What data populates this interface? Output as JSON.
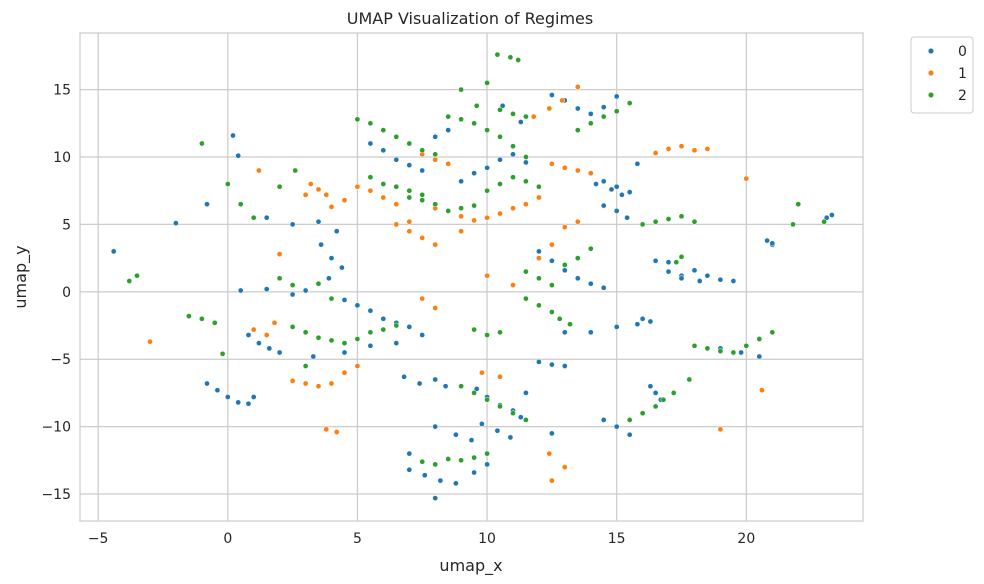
{
  "chart_data": {
    "type": "scatter",
    "title": "UMAP Visualization of Regimes",
    "xlabel": "umap_x",
    "ylabel": "umap_y",
    "xlim": [
      -5.7,
      24.5
    ],
    "ylim": [
      -17.0,
      19.2
    ],
    "xticks": [
      -5,
      0,
      5,
      10,
      15,
      20
    ],
    "yticks": [
      -15,
      -10,
      -5,
      0,
      5,
      10,
      15
    ],
    "xtick_labels": [
      "−5",
      "0",
      "5",
      "10",
      "15",
      "20"
    ],
    "ytick_labels": [
      "−15",
      "−10",
      "−5",
      "0",
      "5",
      "10",
      "15"
    ],
    "grid": true,
    "legend_position": "outside-top-right",
    "series": [
      {
        "name": "0",
        "color": "#1f77b4",
        "x": [
          3.6,
          4.0,
          4.4,
          3.9,
          4.2,
          5.5,
          6.0,
          6.5,
          7.0,
          7.5,
          8.0,
          8.5,
          9.0,
          9.5,
          10.0,
          10.5,
          11.0,
          11.5,
          12.0,
          12.5,
          13.0,
          13.5,
          14.0,
          14.5,
          10.6,
          11.0,
          11.3,
          12.5,
          13.0,
          13.5,
          14.0,
          14.5,
          15.0,
          14.2,
          14.8,
          15.2,
          14.5,
          15.0,
          15.4,
          15.8,
          17.0,
          17.5,
          18.0,
          18.5,
          19.0,
          19.5,
          16.5,
          17.0,
          17.5,
          18.2,
          0.5,
          1.5,
          2.5,
          3.0,
          4.5,
          5.0,
          5.5,
          6.0,
          6.5,
          7.0,
          6.8,
          7.4,
          8.0,
          8.4,
          9.6,
          10.0,
          10.5,
          11.0,
          11.3,
          9.8,
          10.4,
          10.9,
          8.0,
          8.8,
          9.4,
          7.0,
          7.6,
          8.2,
          8.8,
          9.5,
          10.0,
          13.0,
          14.0,
          15.0,
          15.8,
          16.0,
          16.3,
          14.5,
          15.0,
          15.5,
          16.3,
          16.5,
          16.7,
          12.0,
          12.5,
          13.0,
          19.0,
          19.8,
          20.5,
          -0.8,
          -0.4,
          0.0,
          0.4,
          0.8,
          1.0,
          0.8,
          1.2,
          1.6,
          2.0,
          3.3,
          4.5,
          5.5,
          6.5,
          7.5,
          14.5,
          15.0,
          15.5,
          20.8,
          21.0,
          1.5,
          2.5,
          3.5,
          -4.4,
          -2.0,
          -0.8,
          0.2,
          0.4,
          21.0,
          23.1,
          23.3,
          8.0,
          7.0,
          11.5,
          12.5
        ],
        "y": [
          3.5,
          2.5,
          1.8,
          1.0,
          4.5,
          11.0,
          10.5,
          9.8,
          9.4,
          9.0,
          11.5,
          12.0,
          8.2,
          8.8,
          9.2,
          9.8,
          10.2,
          9.6,
          3.0,
          2.3,
          1.6,
          1.0,
          0.6,
          0.3,
          13.8,
          13.2,
          12.6,
          14.6,
          14.2,
          13.6,
          13.2,
          13.7,
          14.5,
          8.0,
          7.6,
          7.2,
          6.4,
          6.0,
          5.5,
          9.5,
          1.5,
          1.2,
          1.6,
          1.2,
          0.9,
          0.8,
          2.3,
          2.2,
          1.0,
          0.8,
          0.1,
          0.2,
          -0.2,
          0.1,
          -0.6,
          -1.0,
          -1.4,
          -2.0,
          -2.3,
          -2.6,
          -6.3,
          -6.8,
          -6.5,
          -7.0,
          -7.2,
          -7.8,
          -8.4,
          -8.8,
          -9.3,
          -9.8,
          -10.3,
          -10.8,
          -10.0,
          -10.6,
          -11.0,
          -13.2,
          -13.6,
          -14.0,
          -14.2,
          -13.4,
          -12.8,
          -3.0,
          -3.0,
          -2.6,
          -2.4,
          -2.0,
          -2.2,
          -9.5,
          -10.0,
          -10.6,
          -7.0,
          -7.5,
          -8.0,
          -5.2,
          -5.4,
          -5.5,
          -4.2,
          -4.5,
          -4.8,
          -6.8,
          -7.3,
          -7.8,
          -8.2,
          -8.3,
          -7.8,
          -3.2,
          -3.8,
          -4.2,
          -4.5,
          -4.8,
          -4.5,
          -4.0,
          -3.8,
          -3.2,
          8.2,
          7.8,
          7.4,
          3.8,
          3.5,
          5.5,
          5.0,
          5.2,
          3.0,
          5.1,
          6.5,
          11.6,
          10.1,
          3.6,
          5.5,
          5.7,
          -15.3,
          -12.0,
          -7.5,
          -10.5
        ]
      },
      {
        "name": "1",
        "color": "#ff7f0e",
        "x": [
          6.5,
          7.0,
          7.5,
          8.0,
          8.5,
          5.0,
          5.5,
          6.0,
          6.5,
          3.2,
          3.8,
          4.5,
          8.0,
          8.5,
          9.0,
          9.5,
          10.0,
          10.5,
          11.0,
          11.5,
          12.0,
          11.8,
          12.4,
          12.9,
          13.5,
          12.5,
          13.0,
          13.5,
          14.0,
          16.5,
          17.0,
          17.5,
          18.0,
          18.5,
          7.0,
          7.5,
          8.0,
          9.0,
          10.0,
          11.0,
          12.0,
          12.5,
          13.0,
          13.5,
          3.0,
          3.5,
          4.0,
          2.0,
          1.0,
          1.5,
          1.8,
          -3.0,
          2.5,
          3.0,
          3.5,
          4.0,
          4.5,
          5.0,
          9.8,
          10.5,
          7.5,
          8.0,
          12.4,
          13.0,
          12.5,
          19.0,
          20.0,
          20.6,
          1.2,
          3.8,
          4.2,
          6.5,
          7.0
        ],
        "y": [
          11.5,
          11.0,
          10.2,
          9.8,
          9.5,
          7.8,
          7.5,
          7.0,
          6.5,
          8.0,
          7.2,
          6.8,
          6.2,
          6.0,
          5.6,
          5.3,
          5.5,
          5.8,
          6.2,
          6.5,
          7.0,
          13.0,
          13.6,
          14.2,
          15.2,
          9.5,
          9.2,
          9.0,
          8.8,
          10.3,
          10.6,
          10.8,
          10.5,
          10.6,
          4.5,
          4.0,
          3.5,
          4.5,
          1.2,
          0.5,
          2.5,
          3.5,
          4.8,
          5.2,
          7.2,
          7.6,
          6.3,
          2.8,
          -2.8,
          -3.2,
          -2.3,
          -3.7,
          -6.6,
          -6.8,
          -7.0,
          -6.8,
          -6.0,
          -5.5,
          -6.0,
          -6.3,
          -0.5,
          -1.2,
          -12.0,
          -13.0,
          -14.0,
          -10.2,
          8.4,
          -7.3,
          9.0,
          -10.2,
          -10.4,
          5.0,
          5.2
        ]
      },
      {
        "name": "2",
        "color": "#2ca02c",
        "x": [
          5.0,
          5.5,
          6.0,
          6.5,
          7.0,
          7.5,
          8.0,
          5.5,
          6.0,
          6.5,
          7.0,
          7.5,
          7.0,
          7.5,
          8.0,
          8.5,
          9.0,
          9.5,
          10.0,
          10.5,
          11.0,
          11.5,
          12.0,
          13.5,
          14.0,
          14.5,
          15.0,
          15.5,
          8.5,
          9.0,
          9.5,
          10.5,
          11.0,
          11.5,
          10.0,
          10.5,
          11.0,
          11.5,
          11.5,
          12.0,
          12.5,
          13.0,
          13.5,
          14.0,
          16.0,
          16.5,
          17.0,
          17.5,
          18.0,
          17.3,
          17.5,
          2.5,
          3.0,
          3.5,
          4.0,
          4.5,
          5.0,
          5.5,
          6.0,
          6.5,
          9.5,
          10.0,
          10.5,
          11.5,
          12.0,
          12.5,
          12.8,
          13.2,
          9.0,
          9.5,
          10.0,
          10.5,
          11.0,
          11.5,
          7.5,
          8.0,
          8.5,
          9.0,
          9.5,
          10.0,
          18.0,
          18.5,
          19.0,
          19.5,
          15.5,
          16.0,
          16.5,
          16.8,
          17.2,
          17.8,
          20.0,
          20.5,
          21.0,
          -1.5,
          -1.0,
          -0.5,
          2.0,
          2.5,
          3.5,
          -3.8,
          -3.5,
          -1.0,
          0.5,
          1.0,
          2.0,
          2.6,
          9.0,
          10.0,
          21.8,
          22.0,
          23.0,
          0.0,
          -0.2,
          10.4,
          10.9,
          11.2,
          9.6,
          10.5,
          4.0,
          3.0
        ],
        "y": [
          12.8,
          12.5,
          12.0,
          11.5,
          11.0,
          10.5,
          10.2,
          8.5,
          8.0,
          7.8,
          7.5,
          7.2,
          7.0,
          6.8,
          6.5,
          6.0,
          6.2,
          6.4,
          7.5,
          8.0,
          8.5,
          8.2,
          7.8,
          12.0,
          12.5,
          13.0,
          13.4,
          14.0,
          13.0,
          12.8,
          12.5,
          13.5,
          13.2,
          13.0,
          12.0,
          11.5,
          10.8,
          10.0,
          1.5,
          1.0,
          0.5,
          2.0,
          2.5,
          3.2,
          5.0,
          5.2,
          5.4,
          5.6,
          5.2,
          2.2,
          2.6,
          -2.6,
          -3.0,
          -3.4,
          -3.6,
          -3.8,
          -3.5,
          -3.0,
          -2.8,
          -2.5,
          -2.8,
          -3.2,
          -3.0,
          -0.5,
          -1.0,
          -1.5,
          -2.0,
          -2.4,
          -7.0,
          -7.5,
          -8.0,
          -8.5,
          -9.0,
          -9.5,
          -12.6,
          -12.8,
          -12.4,
          -12.5,
          -12.3,
          -12.0,
          -4.0,
          -4.2,
          -4.4,
          -4.5,
          -9.5,
          -9.0,
          -8.5,
          -8.0,
          -7.5,
          -6.5,
          -4.0,
          -3.5,
          -3.0,
          -1.8,
          -2.0,
          -2.3,
          1.0,
          0.5,
          0.6,
          0.8,
          1.2,
          11.0,
          6.5,
          5.5,
          7.8,
          9.0,
          15.0,
          15.5,
          5.0,
          6.5,
          5.2,
          8.0,
          -4.6,
          17.6,
          17.4,
          17.2,
          13.8,
          13.5,
          -0.5,
          -5.5
        ]
      }
    ]
  }
}
